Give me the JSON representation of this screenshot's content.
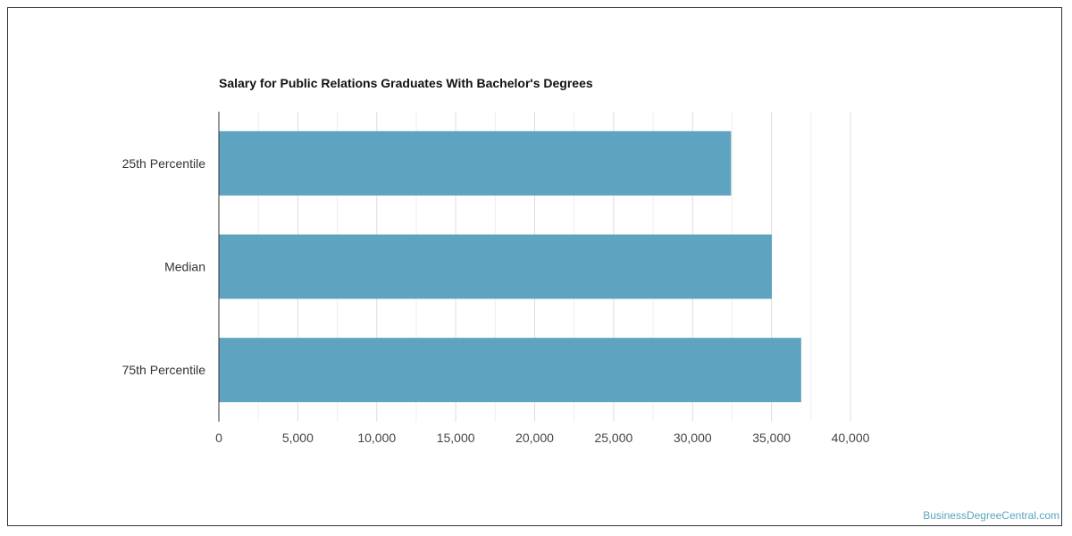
{
  "colors": {
    "bar": "#5ea3bf",
    "grid": "#dddddd",
    "axis": "#333333"
  },
  "source_link": "BusinessDegreeCentral.com",
  "chart_data": {
    "type": "bar",
    "orientation": "horizontal",
    "title": "Salary for Public Relations Graduates With Bachelor's Degrees",
    "categories": [
      "25th Percentile",
      "Median",
      "75th Percentile"
    ],
    "values": [
      32440,
      35020,
      36880
    ],
    "xlim": [
      0,
      40000
    ],
    "xticks": [
      0,
      5000,
      10000,
      15000,
      20000,
      25000,
      30000,
      35000,
      40000
    ],
    "tick_labels": [
      "0",
      "5,000",
      "10,000",
      "15,000",
      "20,000",
      "25,000",
      "30,000",
      "35,000",
      "40,000"
    ],
    "xlabel": "",
    "ylabel": "",
    "grid": true,
    "legend": "none"
  }
}
